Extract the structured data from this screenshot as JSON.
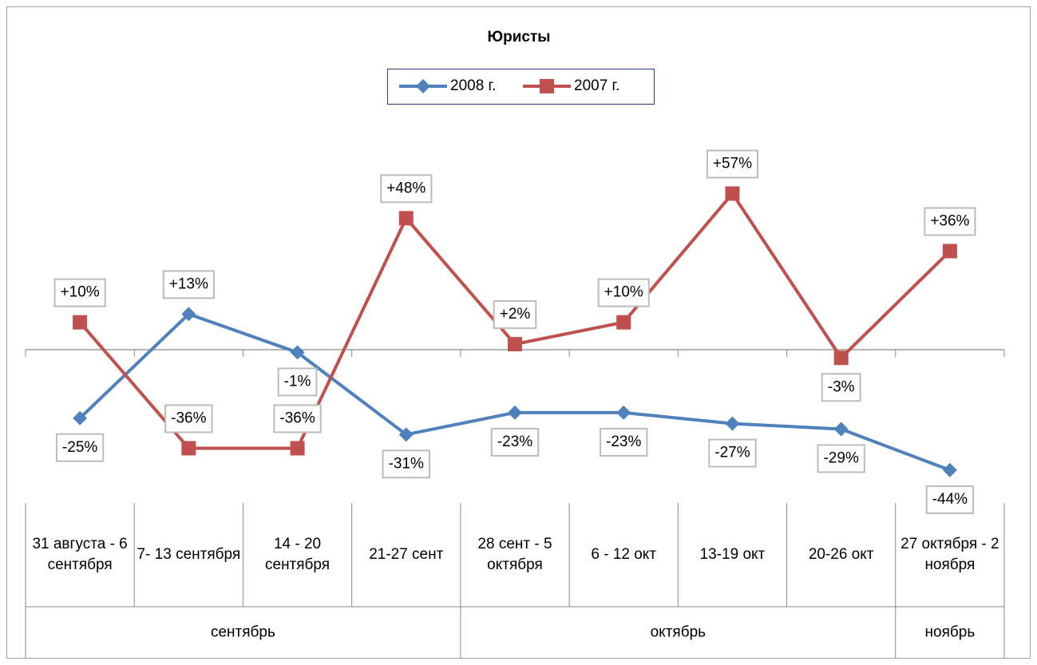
{
  "chart_data": {
    "type": "line",
    "title": "Юристы",
    "categories": [
      "31 августа - 6 сентября",
      "7- 13 сентября",
      "14 - 20 сентября",
      "21-27 сент",
      "28 сент - 5 октября",
      "6 - 12 окт",
      "13-19 окт",
      "20-26 окт",
      "27 октября - 2 ноября"
    ],
    "category_groups": [
      "сентябрь",
      null,
      null,
      null,
      "октябрь",
      null,
      null,
      null,
      "ноябрь"
    ],
    "series": [
      {
        "name": "2008 г.",
        "color": "#4f81bd",
        "marker": "diamond",
        "values": [
          -25,
          13,
          -1,
          -31,
          -23,
          -23,
          -27,
          -29,
          -44
        ],
        "value_labels": [
          "-25%",
          "+13%",
          "-1%",
          "-31%",
          "-23%",
          "-23%",
          "-27%",
          "-29%",
          "-44%"
        ]
      },
      {
        "name": "2007 г.",
        "color": "#c0504d",
        "marker": "square",
        "values": [
          10,
          -36,
          -36,
          48,
          2,
          10,
          57,
          -3,
          36
        ],
        "value_labels": [
          "+10%",
          "-36%",
          "-36%",
          "+48%",
          "+2%",
          "+10%",
          "+57%",
          "-3%",
          "+36%"
        ]
      }
    ],
    "ylim": [
      -60,
      80
    ],
    "legend": "top"
  }
}
